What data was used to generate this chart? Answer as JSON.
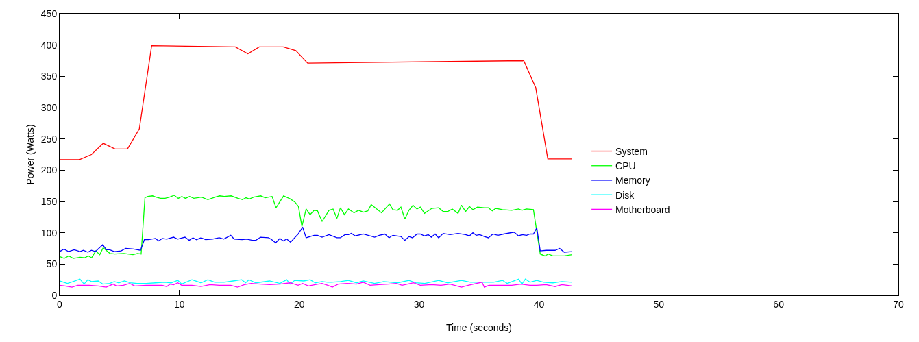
{
  "chart_data": {
    "type": "line",
    "xlabel": "Time (seconds)",
    "ylabel": "Power (Watts)",
    "xlim": [
      0,
      70
    ],
    "xticks": [
      0,
      10,
      20,
      30,
      40,
      50,
      60,
      70
    ],
    "ylim": [
      0,
      450
    ],
    "yticks": [
      0,
      50,
      100,
      150,
      200,
      250,
      300,
      350,
      400,
      450
    ],
    "grid": false,
    "legend": "right",
    "marker": "none",
    "line_style": "solid",
    "series": [
      {
        "name": "System",
        "color": "#ff0000",
        "x": [
          0,
          1.66,
          2.65,
          3.64,
          4.63,
          5.66,
          6.65,
          7.68,
          14.66,
          15.71,
          16.66,
          18.66,
          19.71,
          20.7,
          38.73,
          39.73,
          40.74,
          42.78
        ],
        "values": [
          217,
          217,
          225,
          243,
          234,
          234,
          266,
          399,
          397,
          386,
          397,
          397,
          391,
          371,
          375,
          332,
          218,
          218
        ]
      },
      {
        "name": "CPU",
        "color": "#00ff00",
        "x": [
          0,
          0.38,
          0.76,
          1.14,
          1.71,
          2.1,
          2.4,
          2.67,
          3.02,
          3.35,
          3.63,
          4.2,
          4.6,
          5.36,
          6.12,
          6.5,
          6.8,
          7.12,
          7.37,
          7.75,
          8.04,
          8.42,
          8.8,
          9.18,
          9.56,
          9.9,
          10.2,
          10.5,
          10.85,
          11.2,
          11.84,
          12.37,
          12.98,
          13.36,
          13.74,
          14.31,
          14.88,
          15.26,
          15.55,
          15.83,
          16.2,
          16.78,
          17.16,
          17.45,
          17.73,
          18.06,
          18.69,
          19.26,
          19.64,
          19.93,
          20.22,
          20.57,
          20.9,
          21.24,
          21.52,
          21.9,
          22.48,
          22.82,
          23.14,
          23.43,
          23.77,
          24.1,
          24.57,
          24.96,
          25.34,
          25.72,
          26.0,
          26.86,
          27.53,
          27.81,
          28.2,
          28.48,
          28.81,
          29.15,
          29.49,
          29.82,
          30.1,
          30.45,
          31.06,
          31.63,
          32.01,
          32.39,
          32.77,
          33.25,
          33.53,
          33.88,
          34.2,
          34.49,
          34.87,
          35.44,
          35.78,
          36.11,
          36.39,
          36.96,
          37.73,
          38.3,
          38.58,
          38.97,
          39.54,
          40.11,
          40.49,
          40.78,
          41.16,
          42.11,
          42.78
        ],
        "values": [
          62,
          59,
          63,
          59,
          61,
          60,
          63,
          60,
          71,
          65,
          76,
          67,
          66,
          67,
          65,
          67,
          66,
          156,
          158,
          159,
          157,
          155,
          155,
          157,
          160,
          155,
          158,
          155,
          158,
          155,
          157,
          153,
          157,
          159,
          158,
          159,
          155,
          153,
          156,
          154,
          157,
          159,
          156,
          157,
          158,
          140,
          159,
          154,
          149,
          142,
          110,
          138,
          129,
          136,
          135,
          118,
          136,
          138,
          123,
          140,
          129,
          138,
          132,
          136,
          133,
          135,
          145,
          132,
          146,
          137,
          136,
          141,
          122,
          136,
          144,
          138,
          141,
          131,
          139,
          140,
          134,
          134,
          138,
          131,
          144,
          134,
          142,
          137,
          141,
          140,
          140,
          135,
          139,
          137,
          136,
          138,
          136,
          138,
          137,
          66,
          63,
          66,
          63,
          63,
          65
        ]
      },
      {
        "name": "Memory",
        "color": "#0000ff",
        "x": [
          0,
          0.36,
          0.74,
          1.22,
          1.7,
          1.98,
          2.36,
          2.65,
          2.99,
          3.6,
          3.89,
          4.17,
          4.56,
          5.13,
          5.51,
          6.18,
          6.75,
          7.07,
          7.41,
          7.99,
          8.27,
          8.56,
          8.94,
          9.51,
          9.86,
          10.46,
          10.81,
          11.13,
          11.42,
          11.8,
          12.18,
          12.75,
          13.32,
          13.7,
          14.28,
          14.56,
          15.23,
          15.61,
          16.09,
          16.38,
          16.76,
          17.43,
          17.71,
          18.03,
          18.38,
          18.66,
          18.95,
          19.27,
          19.9,
          20.28,
          20.57,
          21.24,
          21.52,
          21.9,
          22.48,
          23.14,
          23.43,
          23.81,
          24.1,
          24.35,
          24.67,
          25.34,
          26.29,
          26.67,
          27.15,
          27.49,
          27.81,
          28.48,
          28.81,
          29.15,
          29.45,
          29.82,
          30.1,
          30.45,
          30.77,
          31.02,
          31.34,
          31.63,
          32.01,
          32.58,
          33.25,
          33.88,
          34.2,
          34.49,
          34.77,
          35.06,
          35.44,
          35.78,
          36.16,
          36.58,
          37.06,
          37.92,
          38.3,
          38.58,
          38.97,
          39.25,
          39.54,
          39.82,
          40.11,
          40.59,
          41.35,
          41.73,
          42.11,
          42.78
        ],
        "values": [
          70,
          74,
          70,
          73,
          70,
          72,
          69,
          72,
          70,
          81,
          73,
          73,
          70,
          71,
          75,
          74,
          72,
          89,
          89,
          91,
          87,
          91,
          90,
          93,
          90,
          93,
          88,
          92,
          89,
          92,
          89,
          90,
          92,
          90,
          96,
          90,
          89,
          90,
          88,
          88,
          93,
          92,
          89,
          84,
          91,
          87,
          90,
          85,
          98,
          109,
          92,
          96,
          96,
          93,
          97,
          92,
          92,
          97,
          97,
          99,
          95,
          98,
          93,
          96,
          98,
          92,
          96,
          94,
          88,
          94,
          92,
          98,
          98,
          95,
          97,
          93,
          98,
          92,
          99,
          97,
          99,
          97,
          95,
          100,
          96,
          97,
          94,
          92,
          98,
          96,
          98,
          101,
          95,
          97,
          96,
          98,
          98,
          108,
          71,
          72,
          72,
          75,
          69,
          70
        ]
      },
      {
        "name": "Disk",
        "color": "#00ffff",
        "x": [
          0,
          0.65,
          1.13,
          1.7,
          2.04,
          2.36,
          2.65,
          3.22,
          3.6,
          4.17,
          4.56,
          4.94,
          5.41,
          5.89,
          6.46,
          7.22,
          7.99,
          8.75,
          9.32,
          9.86,
          10.18,
          11.04,
          11.8,
          12.37,
          12.94,
          13.71,
          14.47,
          15.19,
          15.52,
          15.8,
          16.37,
          17.52,
          18.38,
          18.95,
          19.23,
          19.62,
          20.38,
          20.91,
          21.33,
          21.9,
          22.38,
          22.67,
          23.43,
          24.1,
          24.77,
          25.34,
          26.29,
          27.05,
          28.2,
          29.15,
          29.72,
          30.48,
          31.63,
          32.39,
          33.53,
          34.3,
          35.44,
          36.2,
          36.96,
          37.35,
          38.3,
          38.58,
          38.87,
          39.25,
          39.82,
          40.4,
          41.16,
          41.92,
          42.78
        ],
        "values": [
          23,
          19,
          22,
          26,
          18,
          25,
          22,
          23,
          18,
          19,
          22,
          20,
          23,
          20,
          19,
          19,
          20,
          21,
          20,
          24,
          18,
          25,
          20,
          25,
          21,
          21,
          23,
          25,
          20,
          25,
          20,
          23,
          19,
          25,
          18,
          24,
          23,
          25,
          20,
          22,
          21,
          21,
          22,
          24,
          20,
          23,
          19,
          22,
          20,
          24,
          20,
          19,
          24,
          20,
          24,
          21,
          21,
          21,
          24,
          19,
          26,
          18,
          26,
          21,
          24,
          21,
          20,
          22,
          21
        ]
      },
      {
        "name": "Motherboard",
        "color": "#ff00ff",
        "x": [
          0,
          0.46,
          1.03,
          1.51,
          2.46,
          3.22,
          3.89,
          4.46,
          4.75,
          5.32,
          5.85,
          6.27,
          7.22,
          7.99,
          8.56,
          8.94,
          9.23,
          9.51,
          9.86,
          10.18,
          11.04,
          11.8,
          12.56,
          13.32,
          14.28,
          14.85,
          15.42,
          15.99,
          16.76,
          17.52,
          18.38,
          19.23,
          19.9,
          20.28,
          20.76,
          21.33,
          21.9,
          22.38,
          22.76,
          23.24,
          24.0,
          24.77,
          25.34,
          25.91,
          26.67,
          27.43,
          28.1,
          28.58,
          29.53,
          30.1,
          31.06,
          31.82,
          32.58,
          33.53,
          34.1,
          35.25,
          35.44,
          35.82,
          36.77,
          37.73,
          38.49,
          39.25,
          39.82,
          40.59,
          41.35,
          41.92,
          42.78
        ],
        "values": [
          16,
          15,
          13,
          16,
          16,
          15,
          13,
          18,
          15,
          16,
          19,
          15,
          16,
          16,
          16,
          14,
          18,
          17,
          20,
          16,
          16,
          14,
          17,
          16,
          16,
          13,
          17,
          19,
          18,
          17,
          18,
          20,
          16,
          19,
          15,
          17,
          19,
          16,
          13,
          18,
          19,
          18,
          21,
          16,
          17,
          18,
          19,
          16,
          20,
          16,
          17,
          16,
          18,
          13,
          16,
          21,
          13,
          16,
          16,
          16,
          18,
          16,
          16,
          17,
          14,
          17,
          15
        ]
      }
    ]
  }
}
